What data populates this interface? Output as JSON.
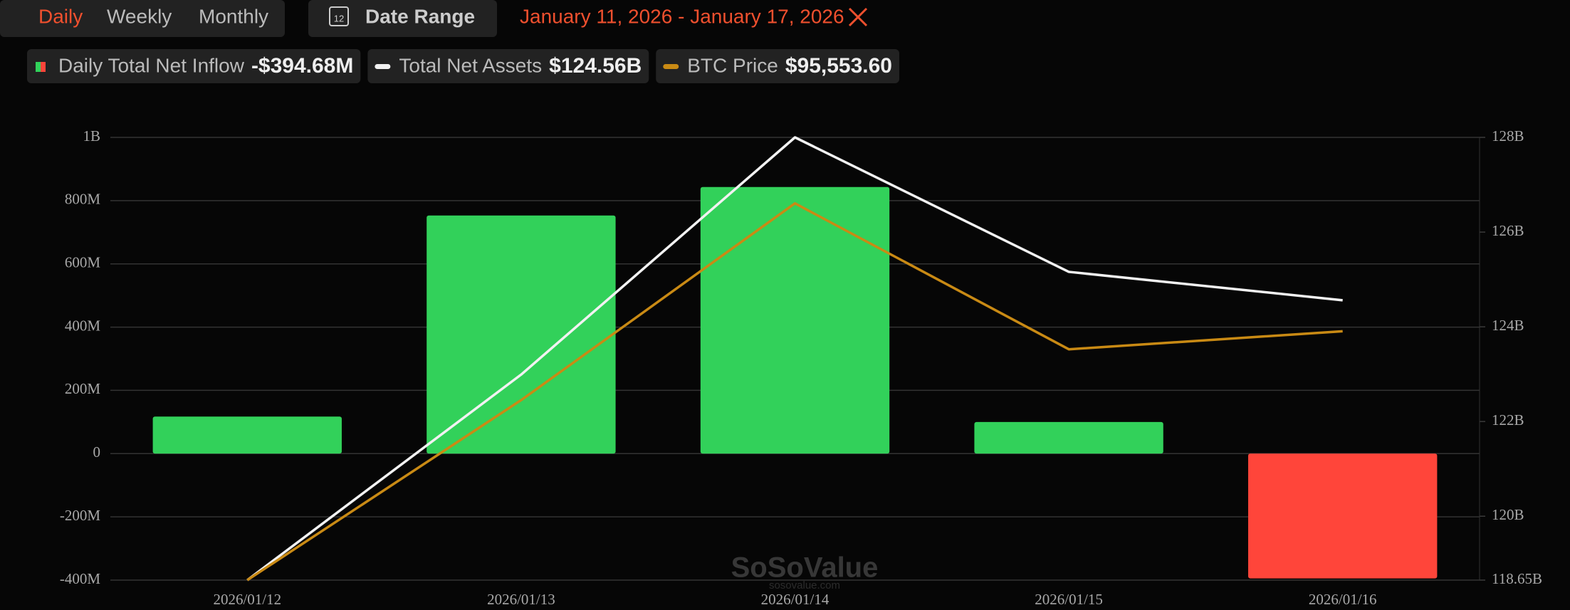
{
  "controls": {
    "tabs": [
      "Daily",
      "Weekly",
      "Monthly"
    ],
    "date_range_button": "Date Range",
    "date_range": "January 11, 2026 - January 17, 2026",
    "calendar_day": "12"
  },
  "chart_data": {
    "type": "bar-line",
    "watermark": "SoSoValue",
    "watermark_url": "sosovalue.com",
    "categories": [
      "2026/01/12",
      "2026/01/13",
      "2026/01/14",
      "2026/01/15",
      "2026/01/16"
    ],
    "series": [
      {
        "name": "Daily Total Net Inflow",
        "summary": "-$394.68M",
        "type": "bar",
        "color": "#32d15a",
        "negative_color": "#ff453a",
        "values": [
          117000000,
          753000000,
          843000000,
          100000000,
          -394680000
        ]
      },
      {
        "name": "Total Net Assets",
        "summary": "$124.56B",
        "type": "line",
        "color": "#f2f2f2",
        "axis": "y2",
        "values": [
          118650000000,
          122990000000,
          128000000000,
          125160000000,
          124560000000
        ]
      },
      {
        "name": "BTC Price",
        "summary": "$95,553.60",
        "type": "line",
        "color": "#c98a14",
        "axis": "y3",
        "values": [
          92740,
          94775,
          97000,
          95350,
          95553.6
        ]
      }
    ],
    "ylim": [
      -400000000,
      1000000000
    ],
    "yticks": [
      {
        "value": -400000000,
        "label": "-400M"
      },
      {
        "value": -200000000,
        "label": "-200M"
      },
      0,
      {
        "value": 200000000,
        "label": "200M"
      },
      {
        "value": 400000000,
        "label": "400M"
      },
      {
        "value": 600000000,
        "label": "600M"
      },
      {
        "value": 800000000,
        "label": "800M"
      },
      {
        "value": 1000000000,
        "label": "1B"
      }
    ],
    "y2lim": [
      118650000000,
      128000000000
    ],
    "y2ticks": [
      {
        "value": 118650000000,
        "label": "118.65B"
      },
      {
        "value": 120000000000,
        "label": "120B"
      },
      {
        "value": 122000000000,
        "label": "122B"
      },
      {
        "value": 124000000000,
        "label": "124B"
      },
      {
        "value": 126000000000,
        "label": "126B"
      },
      {
        "value": 128000000000,
        "label": "128B"
      }
    ],
    "y3lim": [
      92740,
      97746
    ],
    "grid": true
  }
}
